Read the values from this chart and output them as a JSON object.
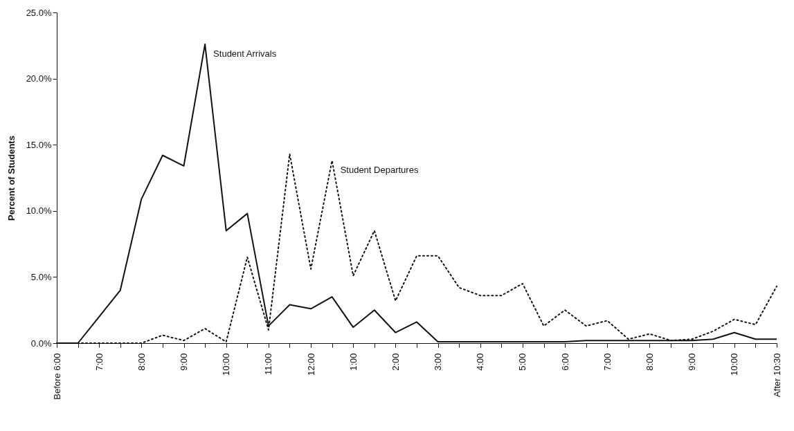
{
  "chart_data": {
    "type": "line",
    "ylabel": "Percent of Students",
    "categories": [
      "Before 6:00",
      null,
      "7:00",
      null,
      "8:00",
      null,
      "9:00",
      null,
      "10:00",
      null,
      "11:00",
      null,
      "12:00",
      null,
      "1:00",
      null,
      "2:00",
      null,
      "3:00",
      null,
      "4:00",
      null,
      "5:00",
      null,
      "6:00",
      null,
      "7:00",
      null,
      "8:00",
      null,
      "9:00",
      null,
      "10:00",
      null,
      "After 10:30"
    ],
    "series": [
      {
        "name": "Student Arrivals",
        "color": "#111111",
        "line_style": "solid",
        "values": [
          0,
          0,
          2.0,
          4.0,
          10.9,
          14.2,
          13.4,
          22.6,
          8.5,
          9.8,
          1.3,
          2.9,
          2.6,
          3.5,
          1.2,
          2.5,
          0.8,
          1.6,
          0.1,
          0.1,
          0.1,
          0.1,
          0.1,
          0.1,
          0.1,
          0.2,
          0.2,
          0.2,
          0.2,
          0.2,
          0.2,
          0.3,
          0.8,
          0.3,
          0.3
        ]
      },
      {
        "name": "Student Departures",
        "color": "#111111",
        "line_style": "dotted",
        "values": [
          0,
          0,
          0,
          0,
          0,
          0.6,
          0.2,
          1.1,
          0.1,
          6.5,
          1.0,
          14.3,
          5.6,
          13.8,
          5.1,
          8.5,
          3.2,
          6.6,
          6.6,
          4.2,
          3.6,
          3.6,
          4.5,
          1.3,
          2.5,
          1.3,
          1.7,
          0.3,
          0.7,
          0.2,
          0.3,
          0.9,
          1.8,
          1.4,
          4.3
        ]
      }
    ],
    "ylim": [
      0,
      25
    ],
    "yticks": [
      {
        "value": 0,
        "label": "0.0%"
      },
      {
        "value": 5,
        "label": "5.0%"
      },
      {
        "value": 10,
        "label": "10.0%"
      },
      {
        "value": 15,
        "label": "15.0%"
      },
      {
        "value": 20,
        "label": "20.0%"
      },
      {
        "value": 25,
        "label": "25.0%"
      }
    ],
    "grid": false,
    "marker": "none"
  }
}
